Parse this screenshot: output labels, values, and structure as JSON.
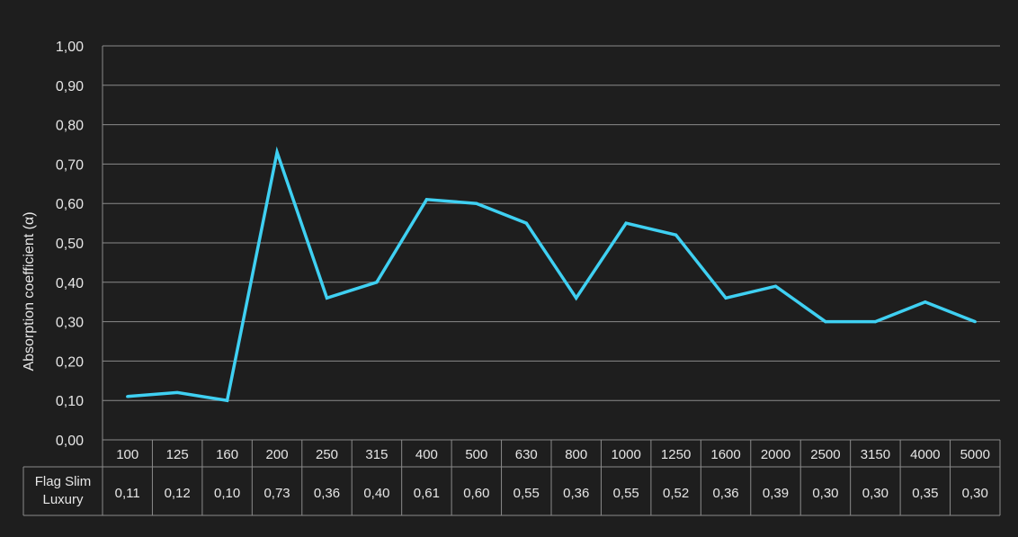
{
  "colors": {
    "background": "#1e1e1e",
    "grid": "#8a8a8a",
    "line": "#3fd0f2",
    "text": "#e6e6e6"
  },
  "chart_data": {
    "type": "line",
    "ylabel": "Absorption coefficient (α)",
    "xlabel": "",
    "ylim": [
      0,
      1
    ],
    "y_ticks": [
      "0,00",
      "0,10",
      "0,20",
      "0,30",
      "0,40",
      "0,50",
      "0,60",
      "0,70",
      "0,80",
      "0,90",
      "1,00"
    ],
    "grid": true,
    "categories": [
      "100",
      "125",
      "160",
      "200",
      "250",
      "315",
      "400",
      "500",
      "630",
      "800",
      "1000",
      "1250",
      "1600",
      "2000",
      "2500",
      "3150",
      "4000",
      "5000"
    ],
    "series": [
      {
        "name": "Flag Slim Luxury",
        "values": [
          0.11,
          0.12,
          0.1,
          0.73,
          0.36,
          0.4,
          0.61,
          0.6,
          0.55,
          0.36,
          0.55,
          0.52,
          0.36,
          0.39,
          0.3,
          0.3,
          0.35,
          0.3
        ]
      }
    ],
    "table": {
      "row_label_lines": [
        "Flag Slim",
        "Luxury"
      ],
      "cells": [
        "0,11",
        "0,12",
        "0,10",
        "0,73",
        "0,36",
        "0,40",
        "0,61",
        "0,60",
        "0,55",
        "0,36",
        "0,55",
        "0,52",
        "0,36",
        "0,39",
        "0,30",
        "0,30",
        "0,35",
        "0,30"
      ]
    }
  }
}
